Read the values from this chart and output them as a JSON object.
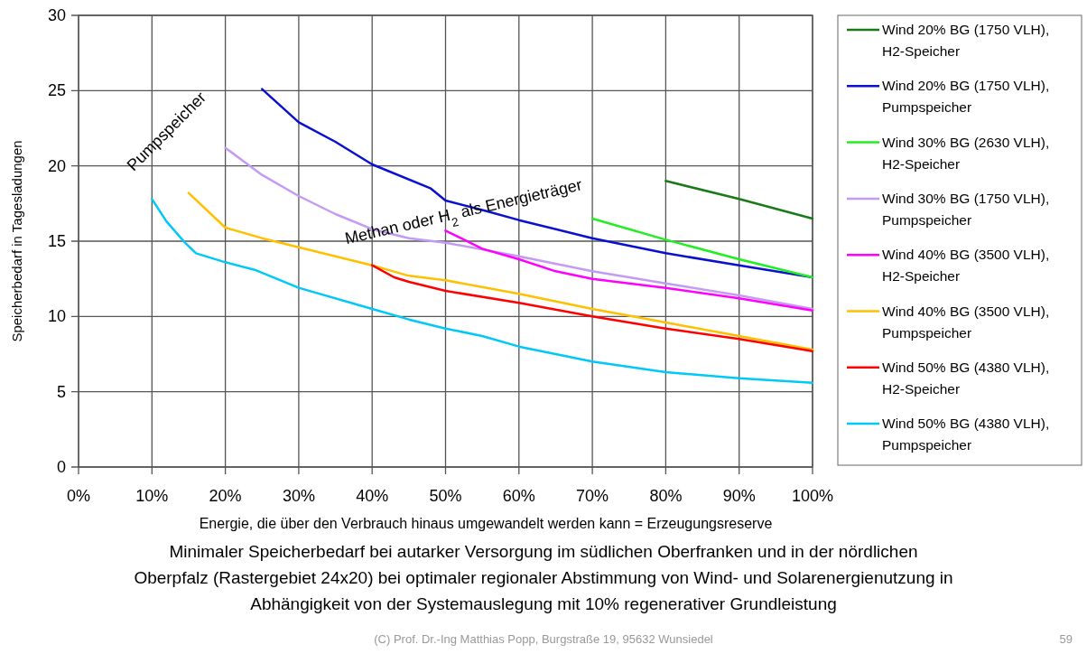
{
  "chart_data": {
    "type": "line",
    "xlabel": "Energie, die über den Verbrauch hinaus umgewandelt werden kann = Erzeugungsreserve",
    "ylabel": "Speicherbedarf in Tagesladungen",
    "title": "Minimaler Speicherbedarf bei autarker Versorgung im südlichen Oberfranken und in der nördlichen Oberpfalz (Rastergebiet 24x20) bei optimaler regionaler Abstimmung von Wind- und Solarenergienutzung in Abhängigkeit von der Systemauslegung mit 10% regenerativer Grundleistung",
    "xlim": [
      0,
      100
    ],
    "xticks": [
      {
        "value": 0,
        "label": "0%"
      },
      {
        "value": 10,
        "label": "10%"
      },
      {
        "value": 20,
        "label": "20%"
      },
      {
        "value": 30,
        "label": "30%"
      },
      {
        "value": 40,
        "label": "40%"
      },
      {
        "value": 50,
        "label": "50%"
      },
      {
        "value": 60,
        "label": "60%"
      },
      {
        "value": 70,
        "label": "70%"
      },
      {
        "value": 80,
        "label": "80%"
      },
      {
        "value": 90,
        "label": "90%"
      },
      {
        "value": 100,
        "label": "100%"
      }
    ],
    "ylim": [
      0,
      30
    ],
    "yticks": [
      0,
      5,
      10,
      15,
      20,
      25,
      30
    ],
    "grid": true,
    "legend": "right",
    "line_style": "solid",
    "series": [
      {
        "name": "Wind 20% BG (1750 VLH), H2-Speicher",
        "color": "#1a7a1a",
        "x": [
          80,
          90,
          100
        ],
        "values": [
          19.0,
          17.8,
          16.5
        ]
      },
      {
        "name": "Wind 20% BG (1750 VLH), Pumpspeicher",
        "color": "#0a10d0",
        "x": [
          25,
          30,
          35,
          40,
          48,
          50,
          55.6,
          60,
          70,
          80,
          90,
          100
        ],
        "values": [
          25.1,
          22.9,
          21.6,
          20.1,
          18.5,
          17.7,
          17.0,
          16.4,
          15.2,
          14.2,
          13.4,
          12.6
        ]
      },
      {
        "name": "Wind 30% BG (2630 VLH), H2-Speicher",
        "color": "#22ee22",
        "x": [
          70,
          80,
          90,
          100
        ],
        "values": [
          16.5,
          15.1,
          13.8,
          12.6
        ]
      },
      {
        "name": "Wind 30% BG (1750 VLH), Pumpspeicher",
        "color": "#c39bf5",
        "x": [
          20,
          25,
          30,
          35,
          40,
          45,
          50,
          60,
          70,
          80,
          90,
          100
        ],
        "values": [
          21.2,
          19.4,
          18.0,
          16.8,
          15.8,
          15.2,
          14.9,
          14.0,
          13.0,
          12.2,
          11.4,
          10.5
        ]
      },
      {
        "name": "Wind 40% BG (3500 VLH), H2-Speicher",
        "color": "#ff00ff",
        "x": [
          50,
          55,
          60,
          65,
          70,
          80,
          90,
          100
        ],
        "values": [
          15.7,
          14.5,
          13.8,
          13.0,
          12.5,
          11.9,
          11.2,
          10.4
        ]
      },
      {
        "name": "Wind 40% BG (3500 VLH), Pumpspeicher",
        "color": "#ffc000",
        "x": [
          15,
          20,
          25,
          30,
          35,
          40,
          45,
          50,
          60,
          70,
          80,
          90,
          100
        ],
        "values": [
          18.2,
          15.9,
          15.2,
          14.6,
          14.0,
          13.4,
          12.7,
          12.4,
          11.5,
          10.5,
          9.6,
          8.7,
          7.8
        ]
      },
      {
        "name": "Wind 50% BG (4380 VLH), H2-Speicher",
        "color": "#ff0000",
        "x": [
          40,
          43,
          45,
          50,
          60,
          70,
          80,
          90,
          100
        ],
        "values": [
          13.4,
          12.6,
          12.3,
          11.7,
          10.9,
          10.0,
          9.2,
          8.5,
          7.7
        ]
      },
      {
        "name": "Wind 50% BG (4380 VLH), Pumpspeicher",
        "color": "#00c8f8",
        "x": [
          10,
          12,
          14.5,
          16,
          20,
          24,
          30,
          40,
          45,
          50,
          55,
          60,
          70,
          80,
          90,
          100
        ],
        "values": [
          17.8,
          16.3,
          14.9,
          14.2,
          13.6,
          13.1,
          11.9,
          10.5,
          9.8,
          9.2,
          8.7,
          8.0,
          7.0,
          6.3,
          5.9,
          5.6
        ]
      }
    ],
    "annotations": [
      "Pumpspeicher",
      "Methan oder H$_{2}$ als Energieträger",
      "(C) Prof. Dr.-Ing Matthias Popp, Burgstraße 19, 95632 Wunsiedel",
      "59"
    ]
  }
}
